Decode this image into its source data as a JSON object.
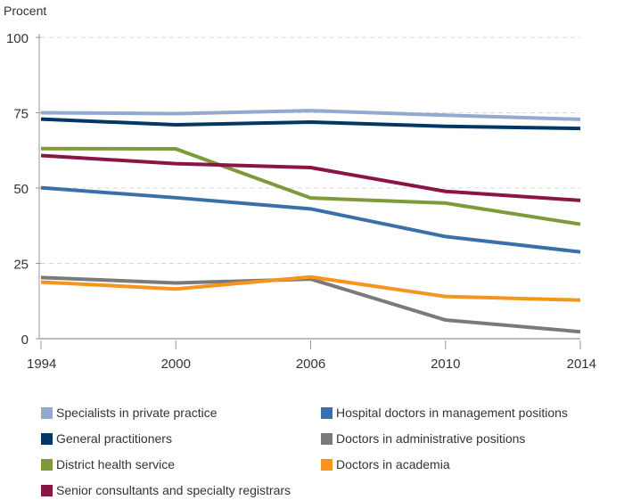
{
  "chart_data": {
    "type": "line",
    "ylabel": "Procent",
    "ylim": [
      0,
      100
    ],
    "yticks": [
      "0",
      "25",
      "50",
      "75",
      "100"
    ],
    "categories": [
      "1994",
      "2000",
      "2006",
      "2010",
      "2014"
    ],
    "grid": "horizontal dashed",
    "legend_placement": "bottom",
    "series": [
      {
        "name": "Specialists in private practice",
        "color": "#94a9cf",
        "values": [
          75.0,
          74.7,
          75.7,
          74.2,
          72.8
        ]
      },
      {
        "name": "Hospital doctors in management positions",
        "color": "#3b6fa8",
        "values": [
          50.1,
          46.8,
          43.1,
          33.9,
          28.8
        ]
      },
      {
        "name": "General practitioners",
        "color": "#003865",
        "values": [
          72.9,
          71.0,
          71.9,
          70.5,
          69.8
        ]
      },
      {
        "name": "Doctors in administrative positions",
        "color": "#7a7a7a",
        "values": [
          20.3,
          18.5,
          19.8,
          6.2,
          2.3
        ]
      },
      {
        "name": "District health service",
        "color": "#7f9a3b",
        "values": [
          63.1,
          63.0,
          46.7,
          45.0,
          38.0
        ]
      },
      {
        "name": "Doctors in academia",
        "color": "#f7941d",
        "values": [
          18.8,
          16.5,
          20.5,
          14.0,
          12.8
        ]
      },
      {
        "name": "Senior consultants and specialty registrars",
        "color": "#8b1446",
        "values": [
          60.8,
          58.1,
          56.8,
          48.9,
          45.9
        ]
      }
    ]
  }
}
